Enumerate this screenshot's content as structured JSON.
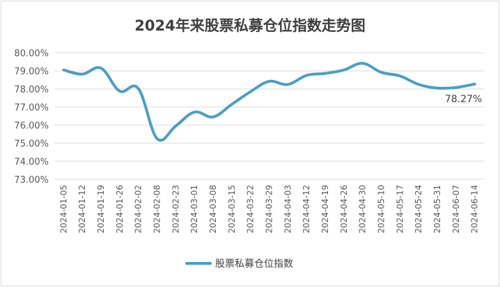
{
  "chart_data": {
    "type": "line",
    "title": "2024年来股票私募仓位指数走势图",
    "xlabel": "",
    "ylabel": "",
    "ylim": [
      73,
      80
    ],
    "y_ticks": [
      "73.00%",
      "74.00%",
      "75.00%",
      "76.00%",
      "77.00%",
      "78.00%",
      "79.00%",
      "80.00%"
    ],
    "categories": [
      "2024-01-05",
      "2024-01-12",
      "2024-01-19",
      "2024-01-26",
      "2024-02-02",
      "2024-02-08",
      "2024-02-23",
      "2024-03-01",
      "2024-03-08",
      "2024-03-15",
      "2024-03-22",
      "2024-03-29",
      "2024-04-03",
      "2024-04-12",
      "2024-04-19",
      "2024-04-26",
      "2024-04-30",
      "2024-05-10",
      "2024-05-17",
      "2024-05-24",
      "2024-05-31",
      "2024-06-07",
      "2024-06-14"
    ],
    "series": [
      {
        "name": "股票私募仓位指数",
        "color": "#4a9fc4",
        "values": [
          79.05,
          78.82,
          79.15,
          77.88,
          78.02,
          75.25,
          75.95,
          76.72,
          76.45,
          77.15,
          77.85,
          78.42,
          78.25,
          78.75,
          78.86,
          79.05,
          79.42,
          78.92,
          78.72,
          78.25,
          78.05,
          78.08,
          78.27
        ]
      }
    ],
    "data_label": "78.27%",
    "grid": true,
    "legend": "bottom-center"
  }
}
